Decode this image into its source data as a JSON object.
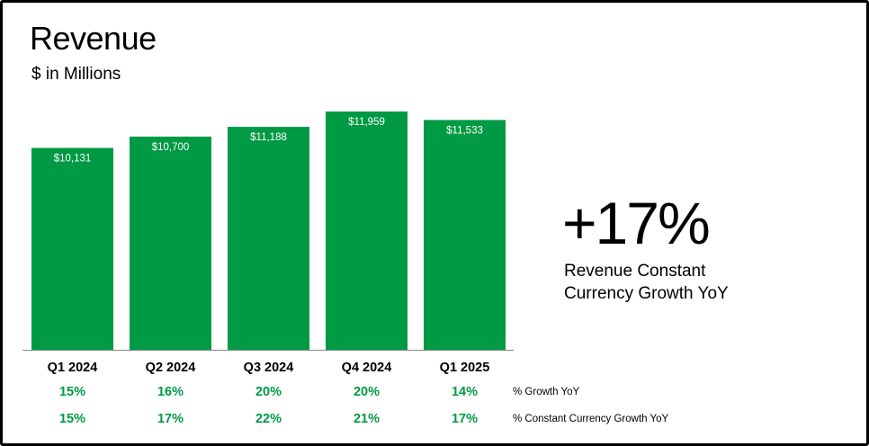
{
  "header": {
    "title": "Revenue",
    "subtitle": "$ in Millions"
  },
  "kpi": {
    "value": "+17%",
    "label_line1": "Revenue Constant",
    "label_line2": "Currency Growth YoY"
  },
  "colors": {
    "bar": "#009A44",
    "growth_text": "#009A44",
    "bar_label": "#FFFFFF"
  },
  "chart_data": {
    "type": "bar",
    "title": "Revenue",
    "subtitle": "$ in Millions",
    "categories": [
      "Q1 2024",
      "Q2 2024",
      "Q3 2024",
      "Q4 2024",
      "Q1 2025"
    ],
    "values": [
      10131,
      10700,
      11188,
      11959,
      11533
    ],
    "value_labels": [
      "$10,131",
      "$10,700",
      "$11,188",
      "$11,959",
      "$11,533"
    ],
    "ylim": [
      0,
      11959
    ],
    "grid": false,
    "legend": "none",
    "rows": [
      {
        "label": "% Growth YoY",
        "values": [
          "15%",
          "16%",
          "20%",
          "20%",
          "14%"
        ]
      },
      {
        "label": "% Constant Currency Growth YoY",
        "values": [
          "15%",
          "17%",
          "22%",
          "21%",
          "17%"
        ]
      }
    ]
  }
}
